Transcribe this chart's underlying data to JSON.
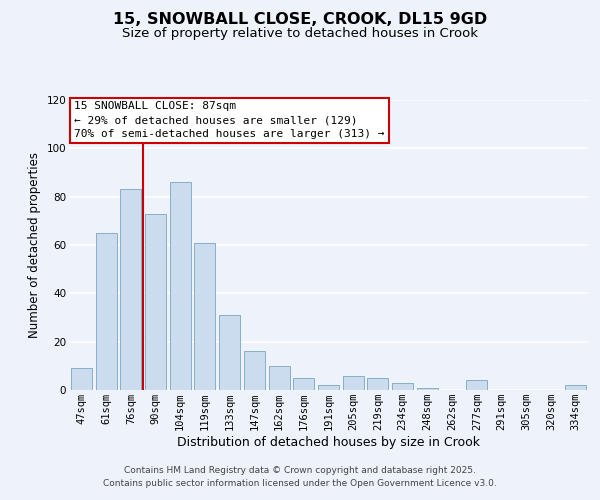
{
  "title": "15, SNOWBALL CLOSE, CROOK, DL15 9GD",
  "subtitle": "Size of property relative to detached houses in Crook",
  "xlabel": "Distribution of detached houses by size in Crook",
  "ylabel": "Number of detached properties",
  "categories": [
    "47sqm",
    "61sqm",
    "76sqm",
    "90sqm",
    "104sqm",
    "119sqm",
    "133sqm",
    "147sqm",
    "162sqm",
    "176sqm",
    "191sqm",
    "205sqm",
    "219sqm",
    "234sqm",
    "248sqm",
    "262sqm",
    "277sqm",
    "291sqm",
    "305sqm",
    "320sqm",
    "334sqm"
  ],
  "values": [
    9,
    65,
    83,
    73,
    86,
    61,
    31,
    16,
    10,
    5,
    2,
    6,
    5,
    3,
    1,
    0,
    4,
    0,
    0,
    0,
    2
  ],
  "bar_color": "#ccdcef",
  "bar_edge_color": "#8aaec8",
  "red_line_x": 2.5,
  "red_line_color": "#cc0000",
  "annotation_text": "15 SNOWBALL CLOSE: 87sqm\n← 29% of detached houses are smaller (129)\n70% of semi-detached houses are larger (313) →",
  "annotation_box_facecolor": "#ffffff",
  "annotation_box_edgecolor": "#cc0000",
  "ylim": [
    0,
    120
  ],
  "yticks": [
    0,
    20,
    40,
    60,
    80,
    100,
    120
  ],
  "fig_bgcolor": "#eef2fa",
  "grid_color": "#ffffff",
  "footer_line1": "Contains HM Land Registry data © Crown copyright and database right 2025.",
  "footer_line2": "Contains public sector information licensed under the Open Government Licence v3.0.",
  "title_fontsize": 11.5,
  "subtitle_fontsize": 9.5,
  "xlabel_fontsize": 9,
  "ylabel_fontsize": 8.5,
  "tick_fontsize": 7.5,
  "annotation_fontsize": 8,
  "footer_fontsize": 6.5
}
